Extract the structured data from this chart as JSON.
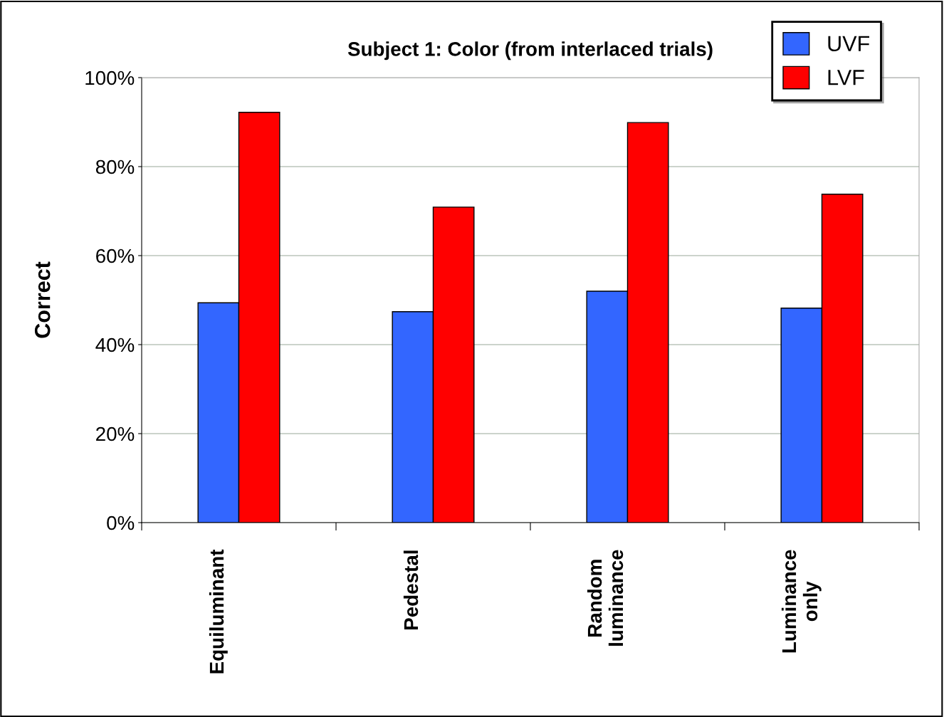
{
  "chart_data": {
    "type": "bar",
    "title": "Subject 1: Color (from interlaced trials)",
    "ylabel": "Correct",
    "categories": [
      "Equiluminant",
      "Pedestal",
      "Random luminance",
      "Luminance only"
    ],
    "series": [
      {
        "name": "UVF",
        "color": "#3366ff",
        "values": [
          49.4,
          47.4,
          52.0,
          48.2
        ]
      },
      {
        "name": "LVF",
        "color": "#ff0000",
        "values": [
          92.2,
          70.9,
          89.9,
          73.8
        ]
      }
    ],
    "ylim": [
      0,
      100
    ],
    "yticks": [
      {
        "value": 0,
        "label": "0%"
      },
      {
        "value": 20,
        "label": "20%"
      },
      {
        "value": 40,
        "label": "40%"
      },
      {
        "value": 60,
        "label": "60%"
      },
      {
        "value": 80,
        "label": "80%"
      },
      {
        "value": 100,
        "label": "100%"
      }
    ],
    "grid": "y",
    "legend": "top right"
  }
}
